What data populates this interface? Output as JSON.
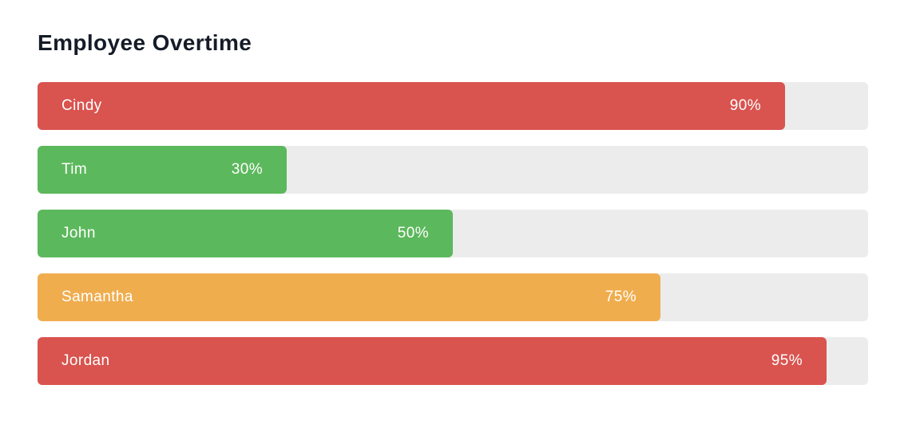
{
  "title": "Employee Overtime",
  "colors": {
    "background": "#ffffff",
    "title_text": "#151c28",
    "track": "#ececec",
    "bar_text": "#ffffff",
    "high": "#d9534f",
    "medium": "#f0ad4e",
    "low": "#5cb85c"
  },
  "bars": [
    {
      "label": "Cindy",
      "value": 90,
      "percent_label": "90%",
      "color": "#d9534f"
    },
    {
      "label": "Tim",
      "value": 30,
      "percent_label": "30%",
      "color": "#5cb85c"
    },
    {
      "label": "John",
      "value": 50,
      "percent_label": "50%",
      "color": "#5cb85c"
    },
    {
      "label": "Samantha",
      "value": 75,
      "percent_label": "75%",
      "color": "#f0ad4e"
    },
    {
      "label": "Jordan",
      "value": 95,
      "percent_label": "95%",
      "color": "#d9534f"
    }
  ],
  "chart_data": {
    "type": "bar",
    "orientation": "horizontal",
    "title": "Employee Overtime",
    "xlabel": "",
    "ylabel": "",
    "categories": [
      "Cindy",
      "Tim",
      "John",
      "Samantha",
      "Jordan"
    ],
    "values": [
      90,
      30,
      50,
      75,
      95
    ],
    "value_labels": [
      "90%",
      "30%",
      "50%",
      "75%",
      "95%"
    ],
    "xlim": [
      0,
      100
    ],
    "grid": false,
    "legend": false,
    "bar_colors": [
      "#d9534f",
      "#5cb85c",
      "#5cb85c",
      "#f0ad4e",
      "#d9534f"
    ],
    "track_color": "#ececec"
  }
}
